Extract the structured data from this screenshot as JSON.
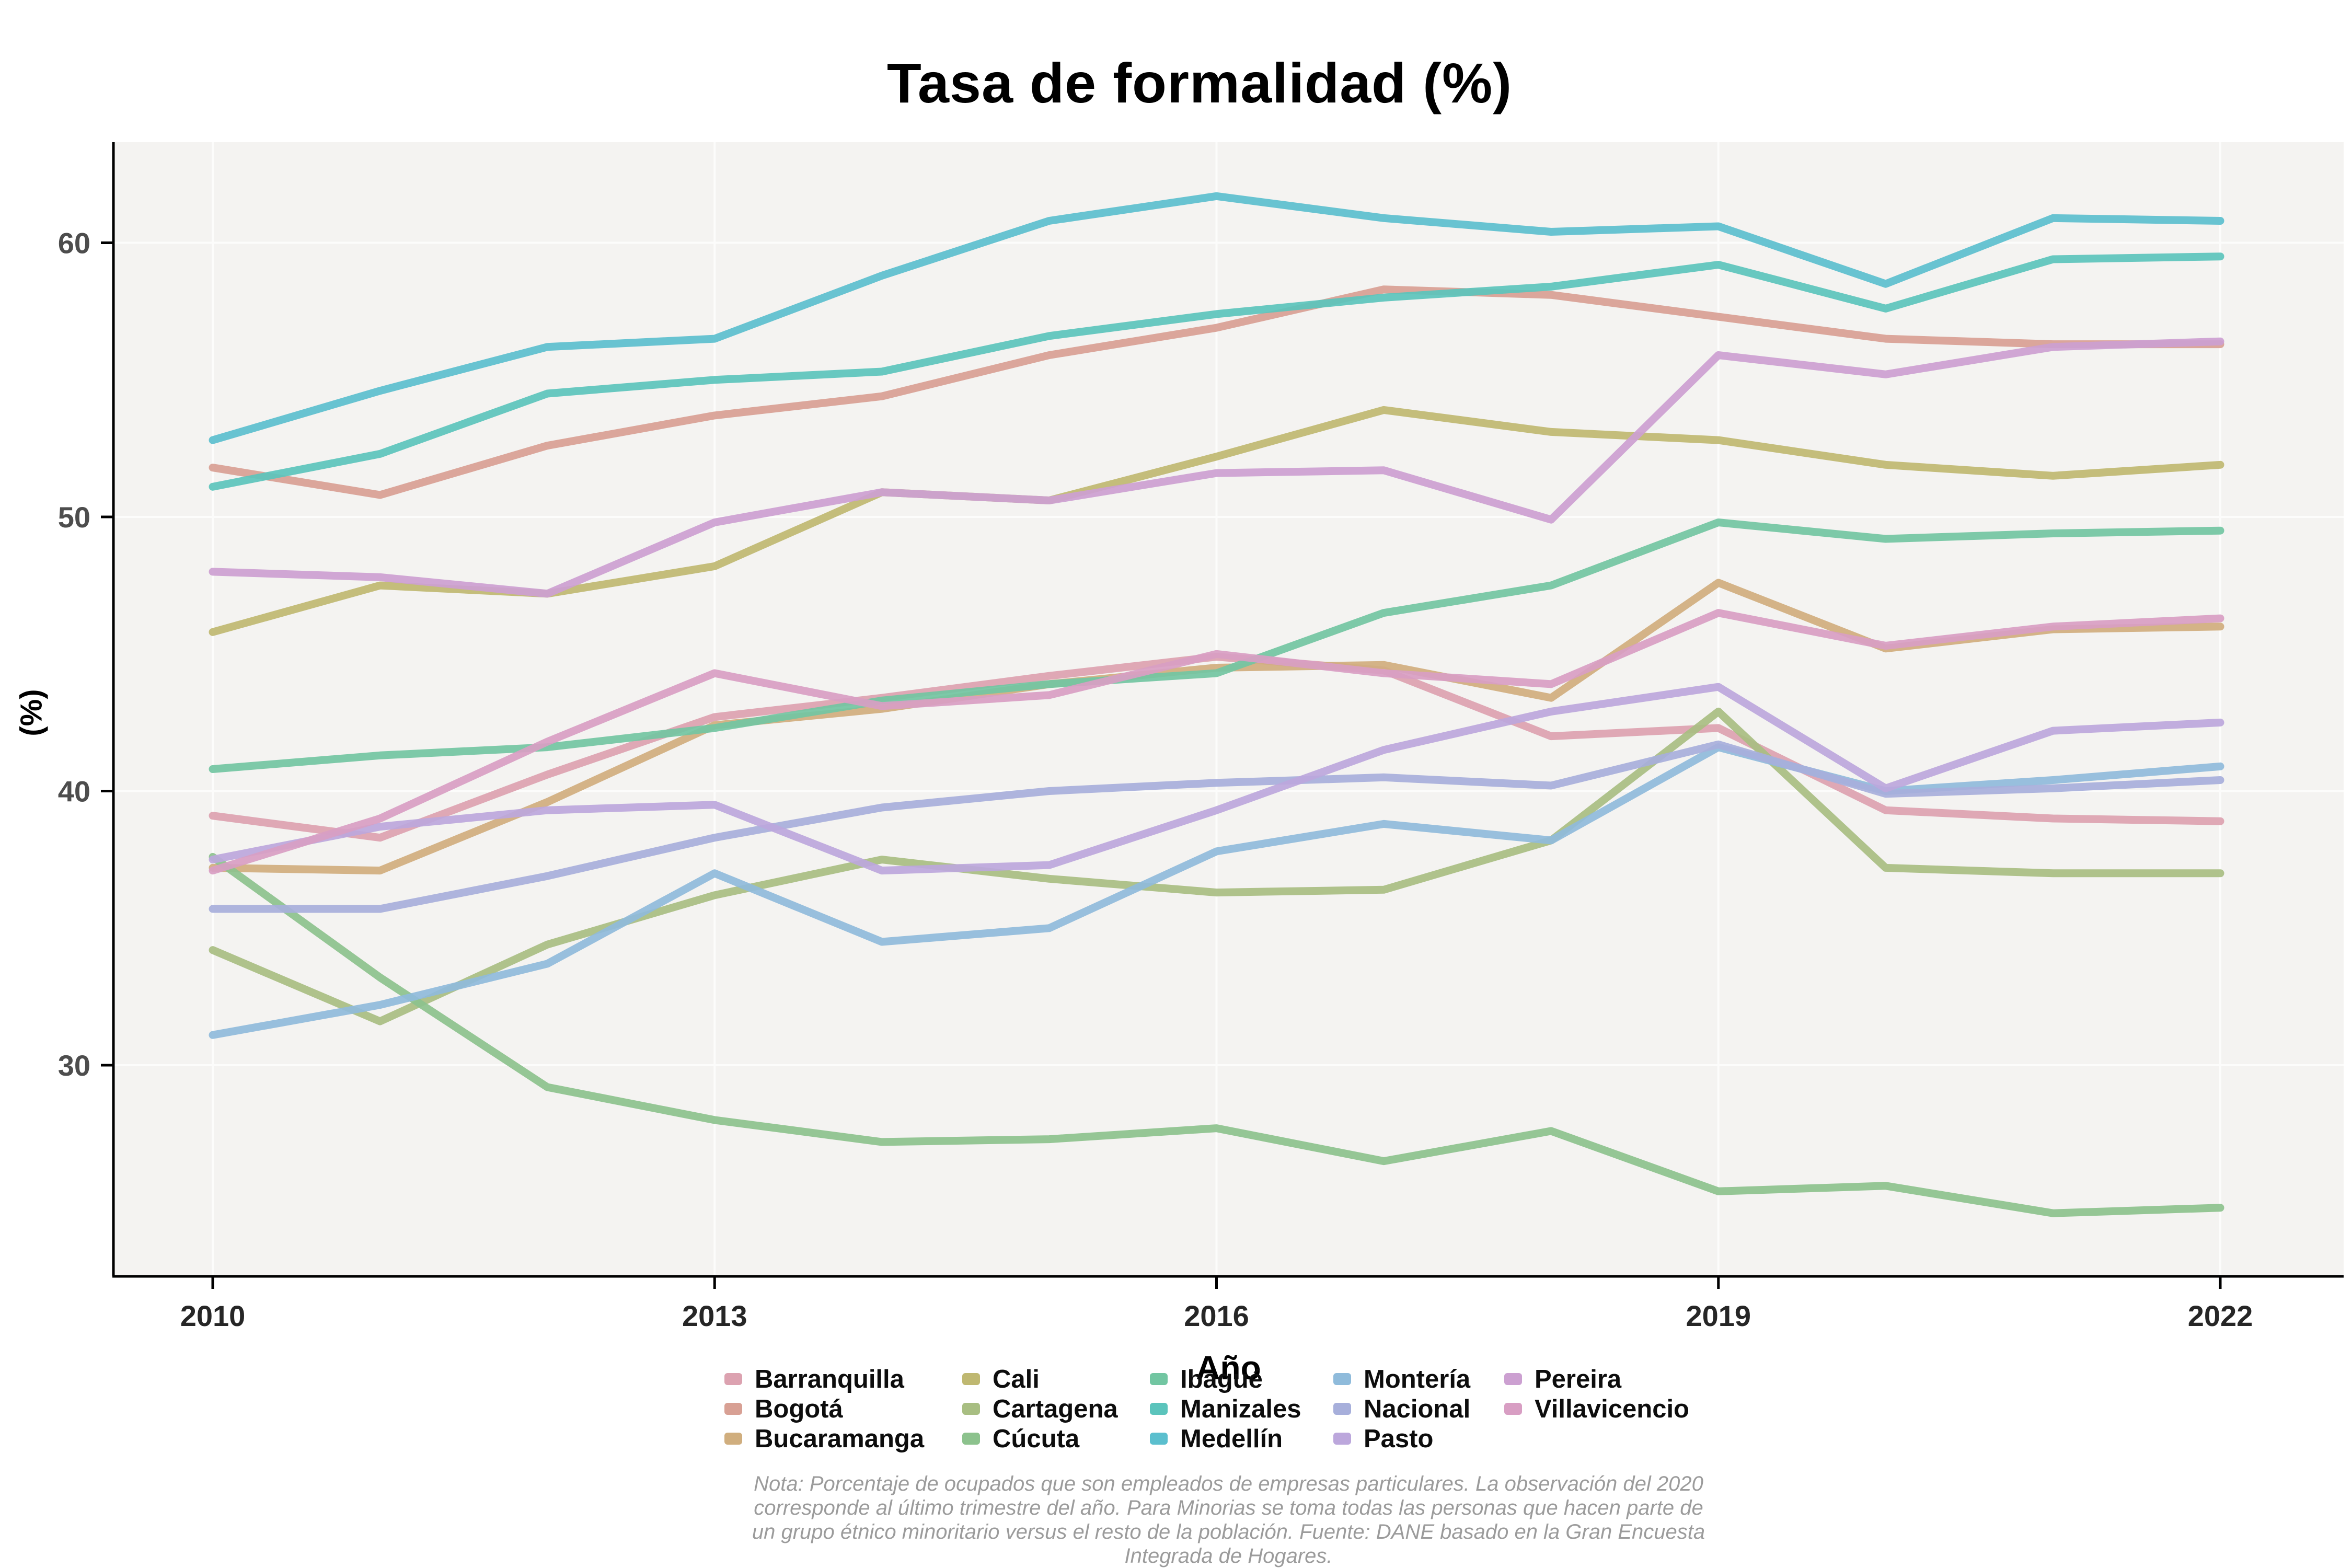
{
  "title": "Tasa de formalidad (%)",
  "axes": {
    "x": {
      "label": "Año",
      "ticks": [
        "2010",
        "2013",
        "2016",
        "2019",
        "2022"
      ],
      "tick_years": [
        2010,
        2013,
        2016,
        2019,
        2022
      ]
    },
    "y": {
      "label": "(%)",
      "ticks": [
        "30",
        "40",
        "50",
        "60"
      ],
      "tick_values": [
        30,
        40,
        50,
        60
      ]
    }
  },
  "note_lines": [
    "Nota: Porcentaje de ocupados que son empleados de empresas particulares. La observación del 2020",
    "corresponde al último trimestre del año. Para Minorias se toma todas las personas que hacen parte de",
    "un grupo étnico minoritario versus el resto de la población. Fuente: DANE basado en la Gran Encuesta",
    "Integrada de Hogares."
  ],
  "colors": {
    "panel_background": "#f4f3f1",
    "gridline": "#fcfcfb",
    "axis_line": "#000000"
  },
  "chart_data": {
    "type": "line",
    "title": "Tasa de formalidad (%)",
    "xlabel": "Año",
    "ylabel": "(%)",
    "x": [
      2010,
      2011,
      2012,
      2013,
      2014,
      2015,
      2016,
      2017,
      2018,
      2019,
      2020,
      2021,
      2022
    ],
    "xlim": [
      2009.4,
      2022.75
    ],
    "ylim": [
      22.3,
      63.7
    ],
    "grid": true,
    "legend_position": "bottom",
    "series": [
      {
        "name": "Barranquilla",
        "color": "#DCA2B0",
        "values": [
          39.1,
          38.3,
          40.6,
          42.7,
          43.4,
          44.2,
          44.9,
          44.4,
          42.0,
          42.3,
          39.3,
          39.0,
          38.9
        ]
      },
      {
        "name": "Bogotá",
        "color": "#D8A094",
        "values": [
          51.8,
          50.8,
          52.6,
          53.7,
          54.4,
          55.9,
          56.9,
          58.3,
          58.1,
          57.3,
          56.5,
          56.3,
          56.3
        ]
      },
      {
        "name": "Bucaramanga",
        "color": "#D0AE7E",
        "values": [
          37.2,
          37.1,
          39.6,
          42.4,
          43.0,
          43.9,
          44.5,
          44.6,
          43.4,
          47.6,
          45.2,
          45.9,
          46.0
        ]
      },
      {
        "name": "Cali",
        "color": "#BFB871",
        "values": [
          45.8,
          47.5,
          47.2,
          48.2,
          50.9,
          50.6,
          52.2,
          53.9,
          53.1,
          52.8,
          51.9,
          51.5,
          51.9
        ]
      },
      {
        "name": "Cartagena",
        "color": "#A8BE82",
        "values": [
          34.2,
          31.6,
          34.4,
          36.2,
          37.5,
          36.8,
          36.3,
          36.4,
          38.2,
          42.9,
          37.2,
          37.0,
          37.0
        ]
      },
      {
        "name": "Cúcuta",
        "color": "#8CC28D",
        "values": [
          37.6,
          33.2,
          29.2,
          28.0,
          27.2,
          27.3,
          27.7,
          26.5,
          27.6,
          25.4,
          25.6,
          24.6,
          24.8
        ]
      },
      {
        "name": "Ibagué",
        "color": "#72C6A2",
        "values": [
          40.8,
          41.3,
          41.6,
          42.3,
          43.3,
          43.9,
          44.3,
          46.5,
          47.5,
          49.8,
          49.2,
          49.4,
          49.5
        ]
      },
      {
        "name": "Manizales",
        "color": "#5BC4BC",
        "values": [
          51.1,
          52.3,
          54.5,
          55.0,
          55.3,
          56.6,
          57.4,
          58.0,
          58.4,
          59.2,
          57.6,
          59.4,
          59.5
        ]
      },
      {
        "name": "Medellín",
        "color": "#5BBFCE",
        "values": [
          52.8,
          54.6,
          56.2,
          56.5,
          58.8,
          60.8,
          61.7,
          60.9,
          60.4,
          60.6,
          58.5,
          60.9,
          60.8
        ]
      },
      {
        "name": "Montería",
        "color": "#8FBBDB",
        "values": [
          31.1,
          32.2,
          33.7,
          37.0,
          34.5,
          35.0,
          37.8,
          38.8,
          38.2,
          41.6,
          40.0,
          40.4,
          40.9
        ]
      },
      {
        "name": "Nacional",
        "color": "#A7AFDB",
        "values": [
          35.7,
          35.7,
          36.9,
          38.3,
          39.4,
          40.0,
          40.3,
          40.5,
          40.2,
          41.7,
          39.9,
          40.1,
          40.4
        ]
      },
      {
        "name": "Pasto",
        "color": "#BCA7DC",
        "values": [
          37.5,
          38.7,
          39.3,
          39.5,
          37.1,
          37.3,
          39.3,
          41.5,
          42.9,
          43.8,
          40.1,
          42.2,
          42.5
        ]
      },
      {
        "name": "Pereira",
        "color": "#CCA0D1",
        "values": [
          48.0,
          47.8,
          47.2,
          49.8,
          50.9,
          50.6,
          51.6,
          51.7,
          49.9,
          55.9,
          55.2,
          56.2,
          56.4
        ]
      },
      {
        "name": "Villavicencio",
        "color": "#D89EC3",
        "values": [
          37.1,
          39.0,
          41.8,
          44.3,
          43.1,
          43.5,
          45.0,
          44.3,
          43.9,
          46.5,
          45.3,
          46.0,
          46.3
        ]
      }
    ]
  }
}
